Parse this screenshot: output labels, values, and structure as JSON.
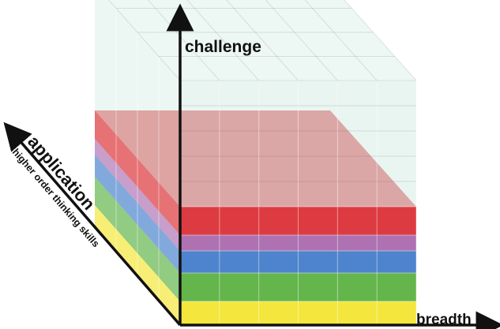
{
  "axes": {
    "vertical_label": "challenge",
    "horizontal_label": "breadth",
    "diagonal_label": "application",
    "diagonal_sublabel": "higher order thinking skills"
  },
  "layers": [
    {
      "name": "yellow",
      "color": "#f2e21a"
    },
    {
      "name": "green",
      "color": "#4aa82e"
    },
    {
      "name": "blue",
      "color": "#2f6fc4"
    },
    {
      "name": "purple",
      "color": "#9a4fa0"
    },
    {
      "name": "red",
      "color": "#d9262d"
    },
    {
      "name": "glass",
      "color": "#bfe3d8"
    }
  ],
  "colors": {
    "axis": "#111111"
  }
}
